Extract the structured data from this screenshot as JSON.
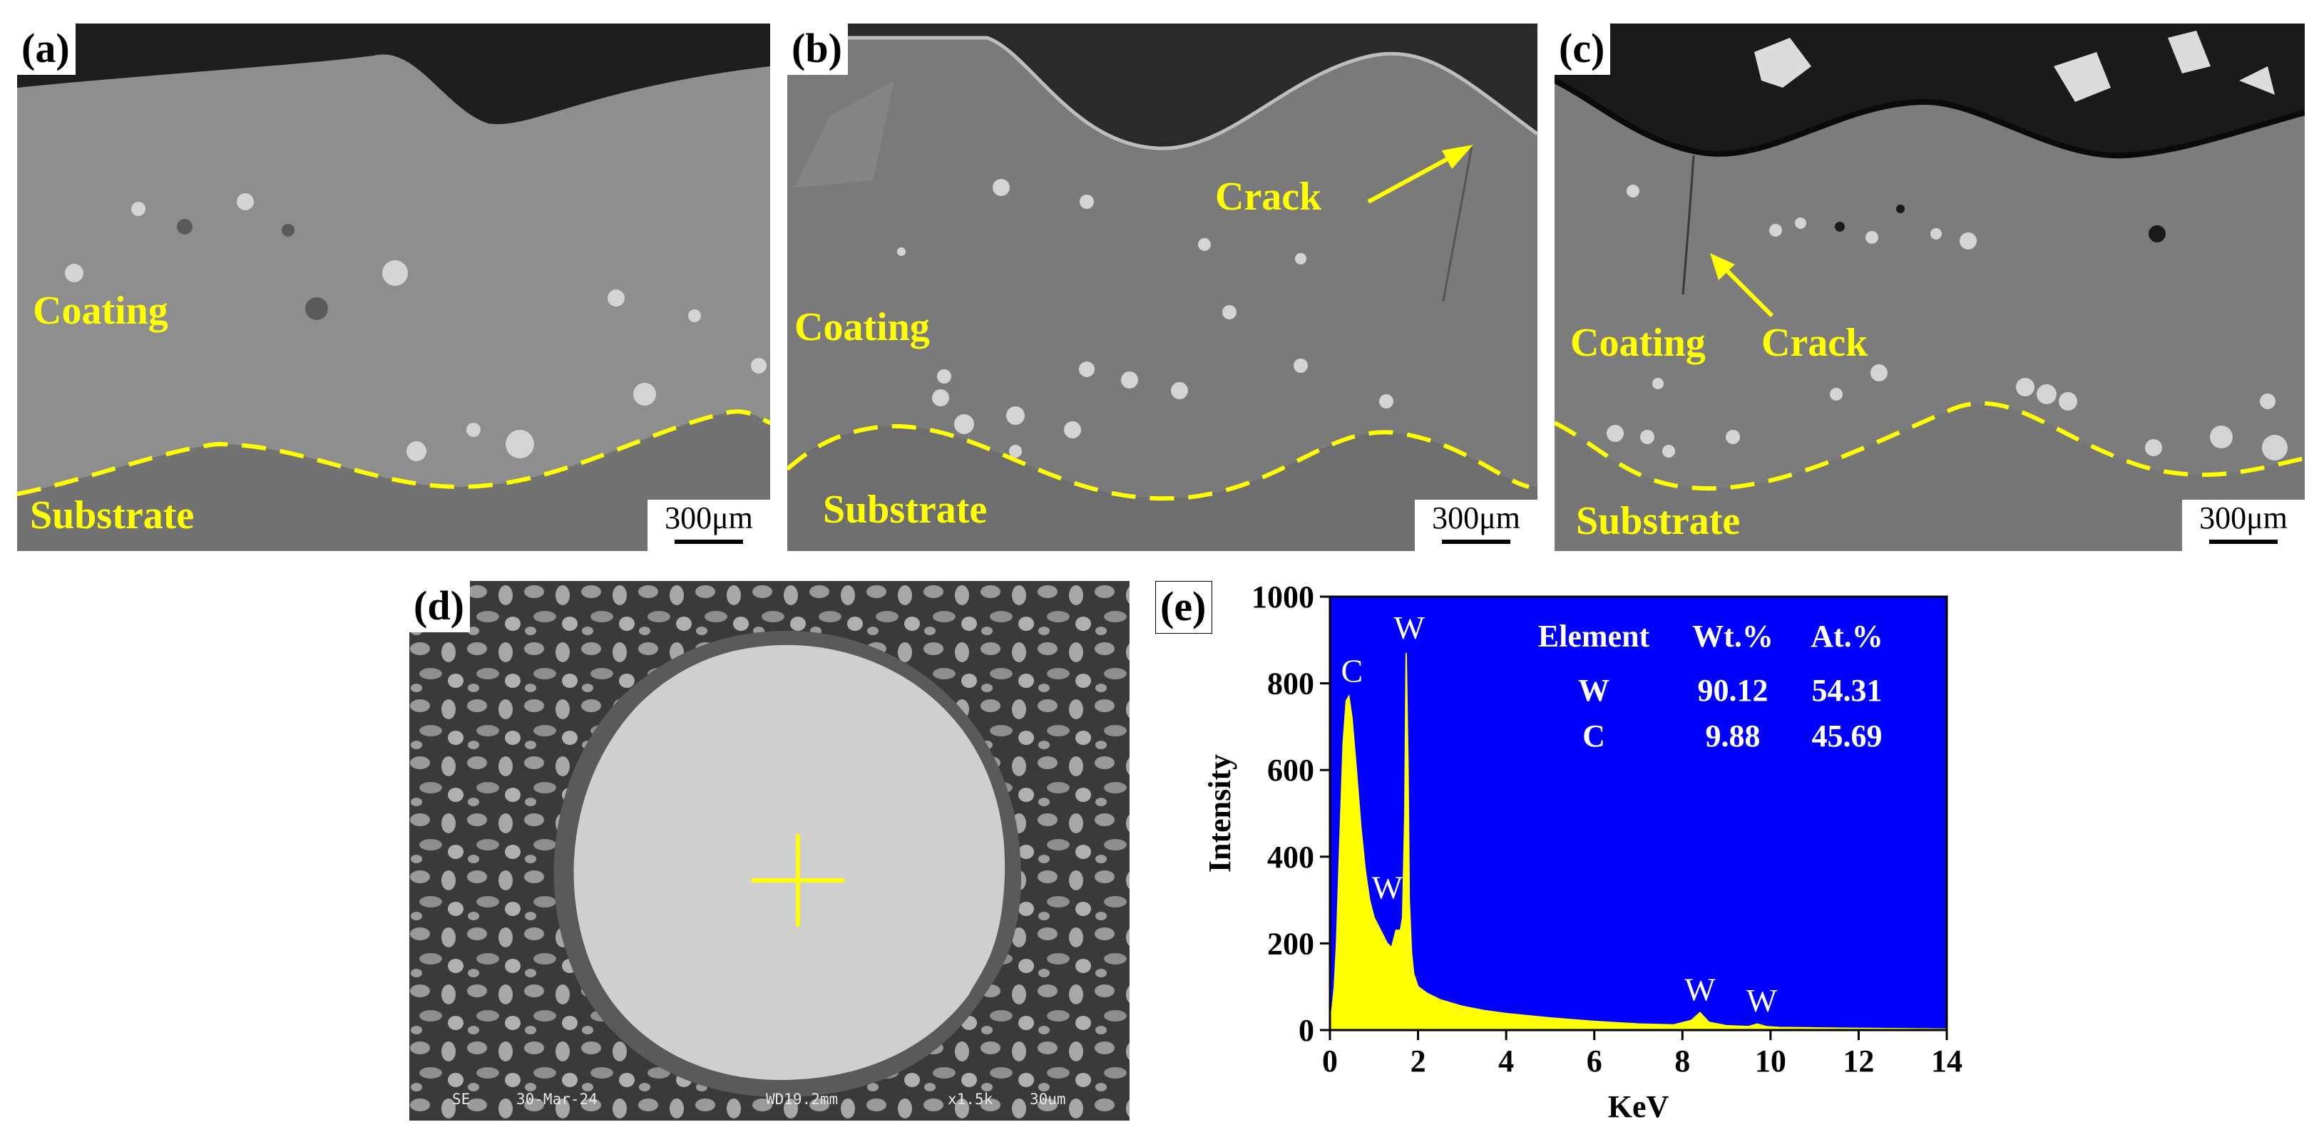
{
  "panels": {
    "a": {
      "letter": "(a)",
      "coating": "Coating",
      "substrate": "Substrate",
      "scale": "300μm"
    },
    "b": {
      "letter": "(b)",
      "coating": "Coating",
      "substrate": "Substrate",
      "crack": "Crack",
      "scale": "300μm"
    },
    "c": {
      "letter": "(c)",
      "coating": "Coating",
      "substrate": "Substrate",
      "crack": "Crack",
      "scale": "300μm"
    },
    "d": {
      "letter": "(d)",
      "meta": [
        "SE",
        "30-Mar-24",
        "WD19.2mm",
        "x1.5k",
        "30um"
      ]
    },
    "e": {
      "letter": "(e)"
    }
  },
  "colors": {
    "annotation": "#ffff00",
    "plot_background": "#0000ff",
    "spectrum_fill": "#ffff00"
  },
  "chart_data": {
    "type": "area",
    "title": "",
    "xlabel": "KeV",
    "ylabel": "Intensity",
    "xlim": [
      0,
      14
    ],
    "ylim": [
      0,
      1000
    ],
    "x_ticks": [
      0,
      2,
      4,
      6,
      8,
      10,
      12,
      14
    ],
    "y_ticks": [
      0,
      200,
      400,
      600,
      800,
      1000
    ],
    "series": [
      {
        "x": [
          0,
          0.1,
          0.15,
          0.22,
          0.3,
          0.37,
          0.43,
          0.5,
          0.6,
          0.7,
          0.8,
          0.9,
          1.0,
          1.1,
          1.2,
          1.3,
          1.4,
          1.5,
          1.6,
          1.65,
          1.7,
          1.73,
          1.77,
          1.8,
          1.85,
          1.9,
          2.0,
          2.2,
          2.5,
          3,
          3.5,
          4,
          5,
          6,
          7,
          7.8,
          8.2,
          8.4,
          8.6,
          9.0,
          9.5,
          9.7,
          9.9,
          10.2,
          11,
          12,
          13,
          14
        ],
        "y": [
          0,
          100,
          200,
          420,
          660,
          760,
          770,
          720,
          600,
          470,
          370,
          300,
          260,
          240,
          220,
          200,
          190,
          230,
          230,
          260,
          500,
          870,
          620,
          300,
          180,
          130,
          100,
          85,
          70,
          55,
          45,
          38,
          28,
          20,
          14,
          12,
          22,
          40,
          18,
          10,
          8,
          14,
          8,
          6,
          5,
          4,
          3,
          2
        ]
      }
    ],
    "peak_labels": [
      {
        "text": "C",
        "x": 0.5,
        "y": 790
      },
      {
        "text": "W",
        "x": 1.8,
        "y": 890
      },
      {
        "text": "W",
        "x": 1.3,
        "y": 290
      },
      {
        "text": "W",
        "x": 8.4,
        "y": 55
      },
      {
        "text": "W",
        "x": 9.8,
        "y": 30
      }
    ],
    "table": {
      "headers": [
        "Element",
        "Wt.%",
        "At.%"
      ],
      "rows": [
        [
          "W",
          "90.12",
          "54.31"
        ],
        [
          "C",
          "9.88",
          "45.69"
        ]
      ]
    }
  }
}
